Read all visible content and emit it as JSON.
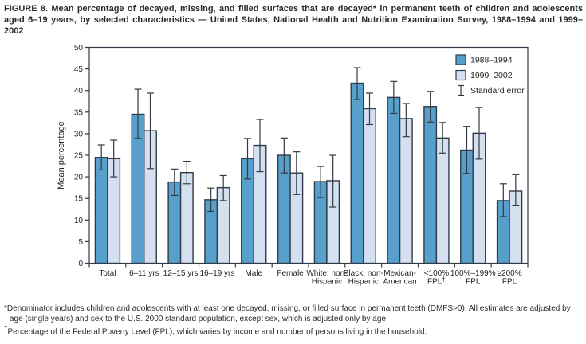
{
  "figure": {
    "title": "FIGURE 8. Mean percentage of decayed, missing, and filled surfaces that are decayed* in permanent teeth of children and adolescents aged 6–19 years, by selected characteristics — United States, National Health and Nutrition Examination Survey, 1988–1994 and 1999–2002",
    "footnotes": [
      {
        "marker": "*",
        "text": "Denominator includes children and adolescents with at least one decayed, missing, or filled surface in permanent teeth (DMFS>0). All estimates are adjusted by age (single years) and sex to the U.S. 2000 standard population, except sex, which is adjusted only by age."
      },
      {
        "marker": "†",
        "text": "Percentage of the Federal Poverty Level (FPL), which varies by income and number of persons living in the household."
      }
    ]
  },
  "colors": {
    "series_1988_fill": "#57A0CB",
    "series_1999_fill": "#D4E0F0",
    "stroke": "#2F3B46",
    "text": "#262626"
  },
  "chart_data": {
    "type": "bar",
    "title": "",
    "ylabel": "Mean percentage",
    "xlabel": "",
    "ylim": [
      0,
      50
    ],
    "ytick_step": 5,
    "grid": false,
    "legend_position": "top-right",
    "se_legend_label": "Standard error",
    "categories": [
      "Total",
      "6–11 yrs",
      "12–15 yrs",
      "16–19 yrs",
      "Male",
      "Female",
      "White, non-\nHispanic",
      "Black, non-\nHispanic",
      "Mexican-\nAmerican",
      "<100%\nFPL†",
      "100%–199%\nFPL",
      "≥200%\nFPL"
    ],
    "series": [
      {
        "name": "1988–1994",
        "values": [
          24.5,
          34.5,
          18.8,
          14.7,
          24.2,
          25.0,
          18.9,
          41.7,
          38.4,
          36.3,
          26.2,
          14.5
        ],
        "se_low": [
          21.6,
          28.9,
          15.7,
          12.0,
          19.5,
          20.9,
          15.2,
          37.9,
          34.7,
          32.7,
          20.8,
          10.8
        ],
        "se_high": [
          27.4,
          40.3,
          21.8,
          17.4,
          28.9,
          29.0,
          22.4,
          45.3,
          42.1,
          39.8,
          31.7,
          18.4
        ]
      },
      {
        "name": "1999–2002",
        "values": [
          24.2,
          30.7,
          21.0,
          17.5,
          27.3,
          20.9,
          19.1,
          35.8,
          33.5,
          29.0,
          30.1,
          16.7
        ],
        "se_low": [
          20.0,
          21.9,
          18.4,
          14.5,
          21.2,
          15.9,
          13.0,
          32.1,
          29.3,
          25.5,
          24.1,
          13.3
        ],
        "se_high": [
          28.5,
          39.4,
          23.6,
          20.3,
          33.3,
          25.8,
          25.0,
          39.4,
          37.0,
          32.6,
          36.1,
          20.5
        ]
      }
    ]
  }
}
